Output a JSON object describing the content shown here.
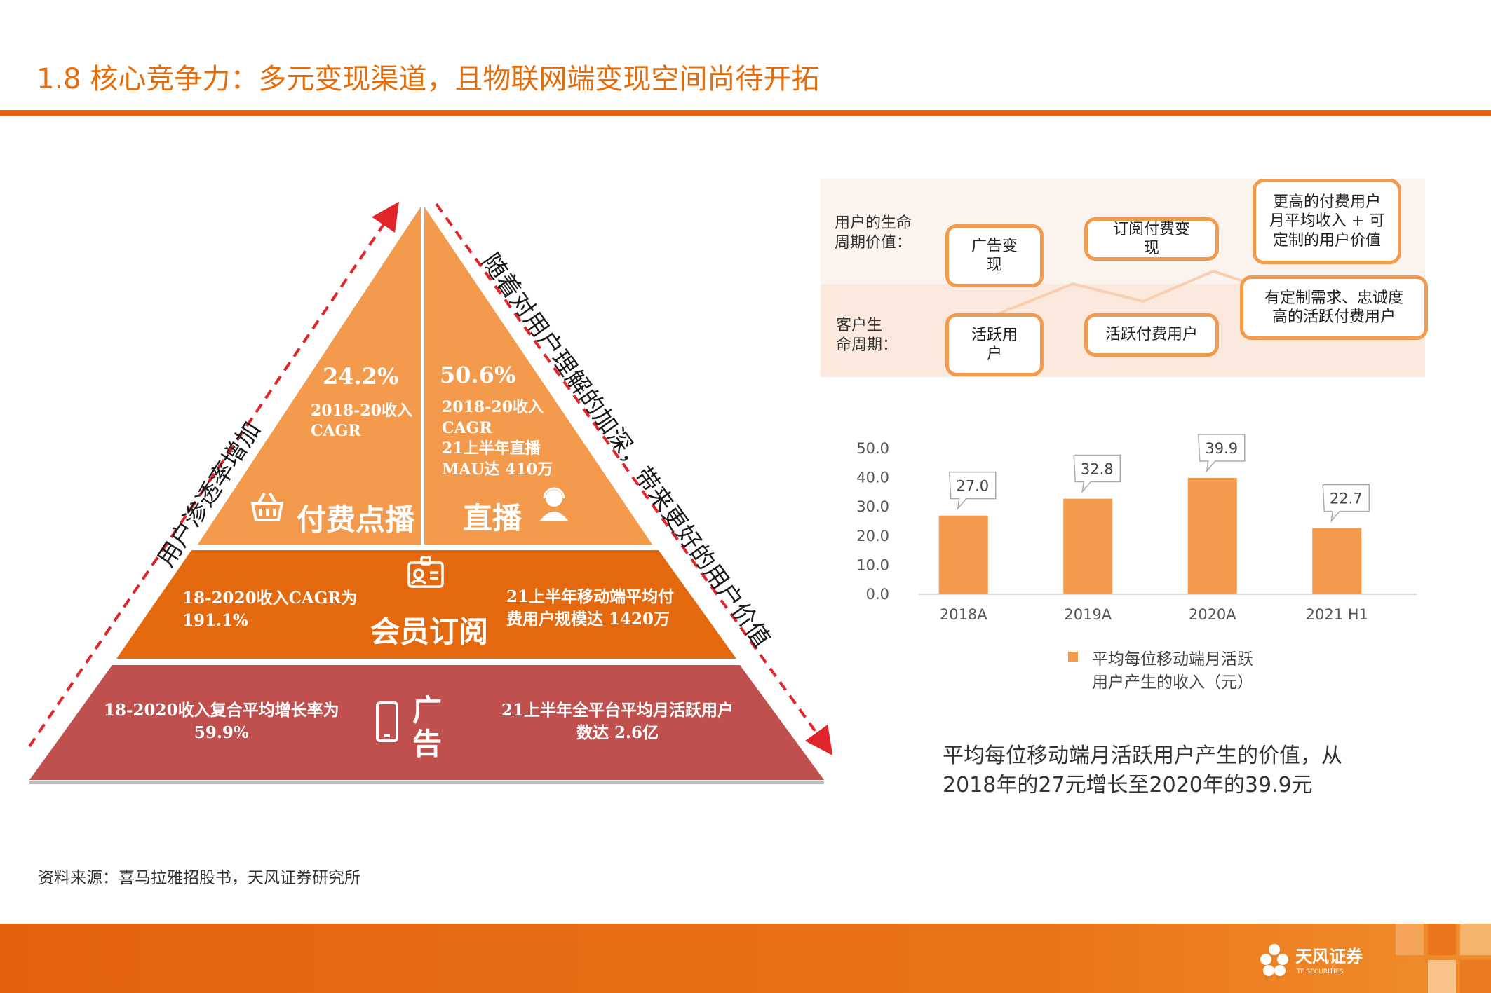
{
  "title": "1.8 核心竞争力：多元变现渠道，且物联网端变现空间尚待开拓",
  "pyramid": {
    "left_side_label": "用户渗透率增加",
    "right_side_label": "随着对用户理解的加深，带来更好的用户价值",
    "top_left": {
      "value": "24.2%",
      "note": "2018-20收入\nCAGR",
      "label": "付费点播"
    },
    "top_right": {
      "value": "50.6%",
      "note": "2018-20收入\nCAGR\n21上半年直播\nMAU达 410万",
      "label": "直播"
    },
    "middle": {
      "left": "18-2020收入CAGR为\n191.1%",
      "label": "会员订阅",
      "right": "21上半年移动端平均付\n费用户规模达 1420万"
    },
    "bottom": {
      "left": "18-2020收入复合平均增长率为\n59.9%",
      "label": "广\n告",
      "right": "21上半年全平台平均月活跃用户\n数达 2.6亿"
    }
  },
  "lifecycle": {
    "row1_label": "用户的生命\n周期价值：",
    "row2_label": "客户生\n命周期：",
    "boxes": [
      "广告变\n现",
      "订阅付费变\n现",
      "更高的付费用户\n月平均收入 + 可\n定制的用户价值",
      "活跃用\n户",
      "活跃付费用户",
      "有定制需求、忠诚度\n高的活跃付费用户"
    ]
  },
  "chart_data": {
    "type": "bar",
    "categories": [
      "2018A",
      "2019A",
      "2020A",
      "2021 H1"
    ],
    "series": [
      {
        "name": "平均每位移动端月活跃用户产生的收入（元）",
        "values": [
          27.0,
          32.8,
          39.9,
          22.7
        ]
      }
    ],
    "value_labels": [
      "27.0",
      "32.8",
      "39.9",
      "22.7"
    ],
    "yticks": [
      "0.0",
      "10.0",
      "20.0",
      "30.0",
      "40.0",
      "50.0"
    ],
    "ylim": [
      0,
      50
    ],
    "bar_color": "#F39A4D",
    "grid": false,
    "legend": "bottom"
  },
  "legend_text": "平均每位移动端月活跃\n用户产生的收入（元）",
  "conclusion": "平均每位移动端月活跃用户产生的价值，从2018年的27元增长至2020年的39.9元",
  "source": "资料来源：喜马拉雅招股书，天风证券研究所",
  "logo": {
    "name_cn": "天风证券",
    "name_en": "TF SECURITIES"
  },
  "colors": {
    "accent": "#E4610F",
    "top_tier": "#F39A4D",
    "middle_tier": "#E4690E",
    "bottom_tier": "#C0504D",
    "dashed_arrow": "#E0262B"
  }
}
